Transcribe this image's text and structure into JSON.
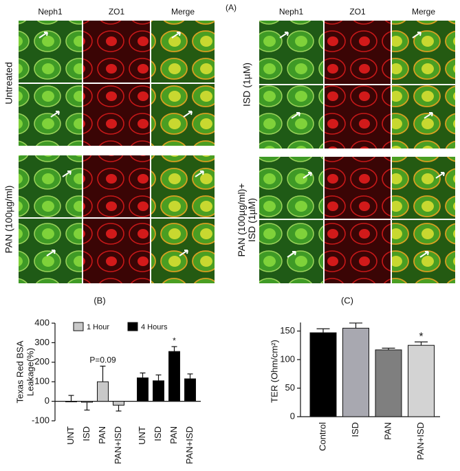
{
  "panels": {
    "label": "(A)",
    "left": {
      "columns": [
        "Neph1",
        "ZO1",
        "Merge"
      ],
      "rows": [
        [
          "Untreated"
        ],
        [
          "PAN (100µg/ml)"
        ]
      ]
    },
    "right": {
      "columns": [
        "Neph1",
        "ZO1",
        "Merge"
      ],
      "rows": [
        [
          "ISD (1µM)"
        ],
        [
          "PAN (100µg/ml)+",
          "ISD (1µM)"
        ]
      ]
    }
  },
  "chart_data": [
    {
      "type": "bar",
      "label": "(B)",
      "ylabel": [
        "Texas Red BSA",
        "Leakage(%)"
      ],
      "categories": [
        "UNT",
        "ISD",
        "PAN",
        "PAN+ISD"
      ],
      "series": [
        {
          "name": "1 Hour",
          "color": "#c8c8c8",
          "values": [
            0,
            -5,
            100,
            -20
          ],
          "errors": [
            30,
            40,
            80,
            30
          ]
        },
        {
          "name": "4 Hours",
          "color": "#000000",
          "values": [
            120,
            105,
            255,
            115
          ],
          "errors": [
            25,
            30,
            25,
            25
          ]
        }
      ],
      "annotations": [
        {
          "text": "P=0.09",
          "series": 0,
          "index": 2
        },
        {
          "text": "*",
          "series": 1,
          "index": 2
        }
      ],
      "legend": "top",
      "ylim": [
        -100,
        400
      ],
      "yticks": [
        -100,
        0,
        100,
        200,
        300,
        400
      ]
    },
    {
      "type": "bar",
      "label": "(C)",
      "ylabel": "TER (Ohm/cm²)",
      "categories": [
        "Control",
        "ISD",
        "PAN",
        "PAN+ISD"
      ],
      "values": [
        147,
        155,
        117,
        125
      ],
      "errors": [
        7,
        9,
        3,
        6
      ],
      "colors": [
        "#000000",
        "#a8a8b0",
        "#7f7f7f",
        "#d3d3d3"
      ],
      "annotations": [
        {
          "text": "*",
          "index": 3
        }
      ],
      "ylim": [
        0,
        165
      ],
      "yticks": [
        0,
        50,
        100,
        150
      ]
    }
  ]
}
